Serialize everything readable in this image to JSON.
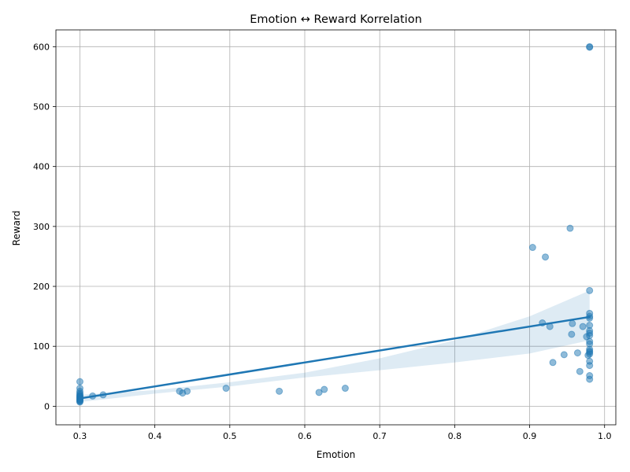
{
  "chart_data": {
    "type": "scatter",
    "title": "Emotion ↔ Reward Korrelation",
    "xlabel": "Emotion",
    "ylabel": "Reward",
    "xlim": [
      0.268,
      1.015
    ],
    "ylim": [
      -31,
      628
    ],
    "xticks": [
      0.3,
      0.4,
      0.5,
      0.6,
      0.7,
      0.8,
      0.9,
      1.0
    ],
    "xtick_labels": [
      "0.3",
      "0.4",
      "0.5",
      "0.6",
      "0.7",
      "0.8",
      "0.9",
      "1.0"
    ],
    "yticks": [
      0,
      100,
      200,
      300,
      400,
      500,
      600
    ],
    "ytick_labels": [
      "0",
      "100",
      "200",
      "300",
      "400",
      "500",
      "600"
    ],
    "grid": true,
    "colors": {
      "points": "#1f77b4",
      "line": "#1f77b4",
      "band": "#1f77b4",
      "grid": "#b0b0b0"
    },
    "points": [
      {
        "x": 0.3,
        "y": 41
      },
      {
        "x": 0.3,
        "y": 30
      },
      {
        "x": 0.3,
        "y": 25
      },
      {
        "x": 0.3,
        "y": 22
      },
      {
        "x": 0.3,
        "y": 20
      },
      {
        "x": 0.3,
        "y": 18
      },
      {
        "x": 0.3,
        "y": 17
      },
      {
        "x": 0.3,
        "y": 16
      },
      {
        "x": 0.3,
        "y": 15
      },
      {
        "x": 0.3,
        "y": 14
      },
      {
        "x": 0.3,
        "y": 13
      },
      {
        "x": 0.3,
        "y": 12
      },
      {
        "x": 0.3,
        "y": 11
      },
      {
        "x": 0.3,
        "y": 10
      },
      {
        "x": 0.3,
        "y": 9
      },
      {
        "x": 0.3,
        "y": 8
      },
      {
        "x": 0.3,
        "y": 7
      },
      {
        "x": 0.317,
        "y": 17
      },
      {
        "x": 0.331,
        "y": 19
      },
      {
        "x": 0.433,
        "y": 25
      },
      {
        "x": 0.437,
        "y": 22
      },
      {
        "x": 0.443,
        "y": 25
      },
      {
        "x": 0.495,
        "y": 30
      },
      {
        "x": 0.566,
        "y": 25
      },
      {
        "x": 0.619,
        "y": 23
      },
      {
        "x": 0.626,
        "y": 28
      },
      {
        "x": 0.654,
        "y": 30
      },
      {
        "x": 0.904,
        "y": 265
      },
      {
        "x": 0.917,
        "y": 139
      },
      {
        "x": 0.921,
        "y": 249
      },
      {
        "x": 0.927,
        "y": 133
      },
      {
        "x": 0.931,
        "y": 73
      },
      {
        "x": 0.946,
        "y": 86
      },
      {
        "x": 0.954,
        "y": 297
      },
      {
        "x": 0.956,
        "y": 120
      },
      {
        "x": 0.957,
        "y": 138
      },
      {
        "x": 0.964,
        "y": 89
      },
      {
        "x": 0.967,
        "y": 58
      },
      {
        "x": 0.971,
        "y": 133
      },
      {
        "x": 0.976,
        "y": 116
      },
      {
        "x": 0.978,
        "y": 85
      },
      {
        "x": 0.98,
        "y": 599
      },
      {
        "x": 0.98,
        "y": 600
      },
      {
        "x": 0.98,
        "y": 193
      },
      {
        "x": 0.98,
        "y": 155
      },
      {
        "x": 0.98,
        "y": 150
      },
      {
        "x": 0.98,
        "y": 147
      },
      {
        "x": 0.98,
        "y": 135
      },
      {
        "x": 0.98,
        "y": 126
      },
      {
        "x": 0.98,
        "y": 122
      },
      {
        "x": 0.98,
        "y": 118
      },
      {
        "x": 0.98,
        "y": 108
      },
      {
        "x": 0.98,
        "y": 104
      },
      {
        "x": 0.98,
        "y": 95
      },
      {
        "x": 0.98,
        "y": 92
      },
      {
        "x": 0.98,
        "y": 90
      },
      {
        "x": 0.98,
        "y": 87
      },
      {
        "x": 0.98,
        "y": 75
      },
      {
        "x": 0.98,
        "y": 68
      },
      {
        "x": 0.98,
        "y": 51
      },
      {
        "x": 0.98,
        "y": 45
      }
    ],
    "regression": {
      "line": [
        {
          "x": 0.3,
          "y": 13
        },
        {
          "x": 0.98,
          "y": 149
        }
      ],
      "ci_upper": [
        {
          "x": 0.3,
          "y": 19
        },
        {
          "x": 0.4,
          "y": 27
        },
        {
          "x": 0.5,
          "y": 40
        },
        {
          "x": 0.6,
          "y": 56
        },
        {
          "x": 0.7,
          "y": 80
        },
        {
          "x": 0.8,
          "y": 110
        },
        {
          "x": 0.9,
          "y": 150
        },
        {
          "x": 0.98,
          "y": 193
        }
      ],
      "ci_lower": [
        {
          "x": 0.3,
          "y": 7
        },
        {
          "x": 0.4,
          "y": 21
        },
        {
          "x": 0.5,
          "y": 33
        },
        {
          "x": 0.6,
          "y": 48
        },
        {
          "x": 0.7,
          "y": 60
        },
        {
          "x": 0.8,
          "y": 73
        },
        {
          "x": 0.9,
          "y": 88
        },
        {
          "x": 0.98,
          "y": 110
        }
      ]
    }
  }
}
